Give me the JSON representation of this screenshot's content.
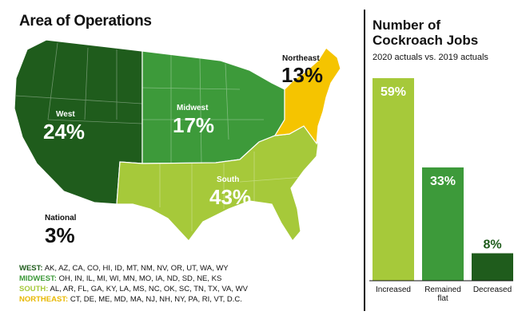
{
  "map": {
    "title": "Area of Operations",
    "regions": [
      {
        "id": "west",
        "name": "West",
        "percent": "24%",
        "color": "#1f5c1c"
      },
      {
        "id": "midwest",
        "name": "Midwest",
        "percent": "17%",
        "color": "#3d9a3a"
      },
      {
        "id": "south",
        "name": "South",
        "percent": "43%",
        "color": "#a6c93a"
      },
      {
        "id": "northeast",
        "name": "Northeast",
        "percent": "13%",
        "color": "#f5c400"
      },
      {
        "id": "national",
        "name": "National",
        "percent": "3%",
        "color": "#111111"
      }
    ],
    "legend": [
      {
        "region": "WEST:",
        "states": "AK, AZ, CA, CO, HI, ID, MT, NM, NV, OR, UT, WA, WY",
        "color": "#1f5c1c"
      },
      {
        "region": "MIDWEST:",
        "states": "OH, IN, IL, MI, WI, MN, MO, IA, ND, SD, NE, KS",
        "color": "#3d9a3a"
      },
      {
        "region": "SOUTH:",
        "states": "AL, AR, FL, GA, KY, LA, MS, NC, OK, SC, TN, TX, VA, WV",
        "color": "#a6c93a"
      },
      {
        "region": "NORTHEAST:",
        "states": "CT, DE, ME, MD, MA, NJ, NH, NY, PA, RI, VT, D.C.",
        "color": "#e8b800"
      }
    ]
  },
  "chart_data": {
    "type": "bar",
    "title": "Number of Cockroach Jobs",
    "subtitle": "2020 actuals vs. 2019 actuals",
    "categories": [
      "Increased",
      "Remained flat",
      "Decreased"
    ],
    "values": [
      59,
      33,
      8
    ],
    "value_labels": [
      "59%",
      "33%",
      "8%"
    ],
    "colors": [
      "#a6c93a",
      "#3d9a3a",
      "#1f5c1c"
    ],
    "ylim": [
      0,
      59
    ],
    "grid": false,
    "legend": "none"
  }
}
